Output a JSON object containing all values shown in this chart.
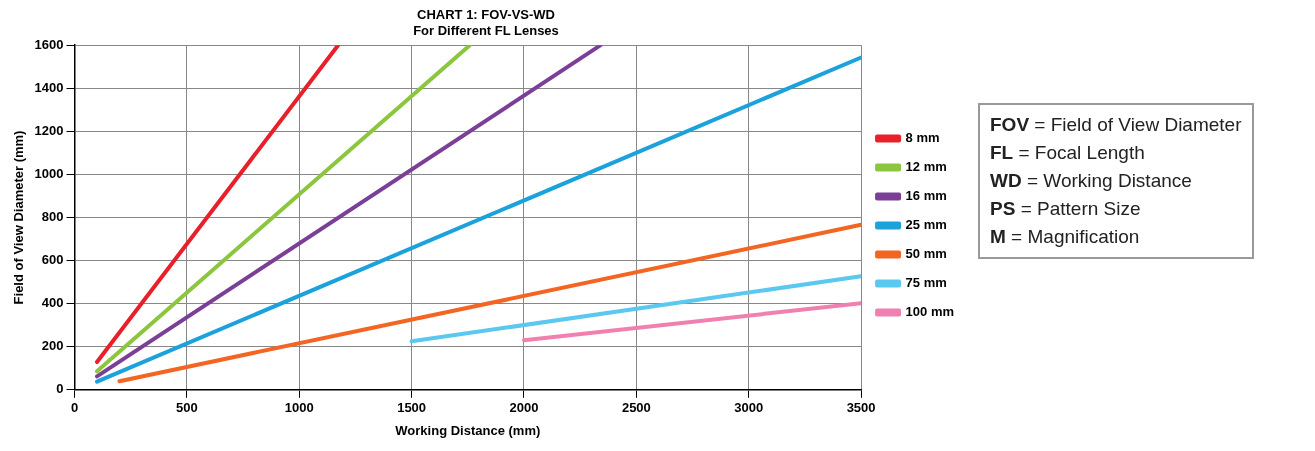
{
  "chart_data": {
    "type": "line",
    "title": "CHART 1: FOV-VS-WD",
    "subtitle": "For Different FL Lenses",
    "xlabel": "Working Distance (mm)",
    "ylabel": "Field of View Diameter (mm)",
    "xlim": [
      0,
      3500
    ],
    "xticks": [
      0,
      500,
      1000,
      1500,
      2000,
      2500,
      3000,
      3500
    ],
    "ylim": [
      0,
      1600
    ],
    "yticks": [
      0,
      200,
      400,
      600,
      800,
      1000,
      1200,
      1400,
      1600
    ],
    "grid": true,
    "legend": "right",
    "marker": "none",
    "line_style": "solid",
    "series": [
      {
        "name": "8 mm",
        "color": "#e8202a",
        "x": [
          100,
          1173
        ],
        "values": [
          129,
          1600
        ]
      },
      {
        "name": "12 mm",
        "color": "#8cc63f",
        "x": [
          100,
          1759
        ],
        "values": [
          86,
          1600
        ]
      },
      {
        "name": "16 mm",
        "color": "#7b3f98",
        "x": [
          100,
          2341
        ],
        "values": [
          62,
          1600
        ]
      },
      {
        "name": "25 mm",
        "color": "#1ba1dc",
        "x": [
          100,
          3500
        ],
        "values": [
          38,
          1543
        ]
      },
      {
        "name": "50 mm",
        "color": "#f26522",
        "x": [
          200,
          3500
        ],
        "values": [
          40,
          766
        ]
      },
      {
        "name": "75 mm",
        "color": "#5bc8f0",
        "x": [
          1500,
          3500
        ],
        "values": [
          225,
          527
        ]
      },
      {
        "name": "100 mm",
        "color": "#f080b0",
        "x": [
          2000,
          3500
        ],
        "values": [
          230,
          402
        ]
      }
    ],
    "annotations": [
      "FOV = Field of View Diameter",
      "FL = Focal Length",
      "WD = Working Distance",
      "PS = Pattern Size",
      "M = Magnification"
    ]
  }
}
